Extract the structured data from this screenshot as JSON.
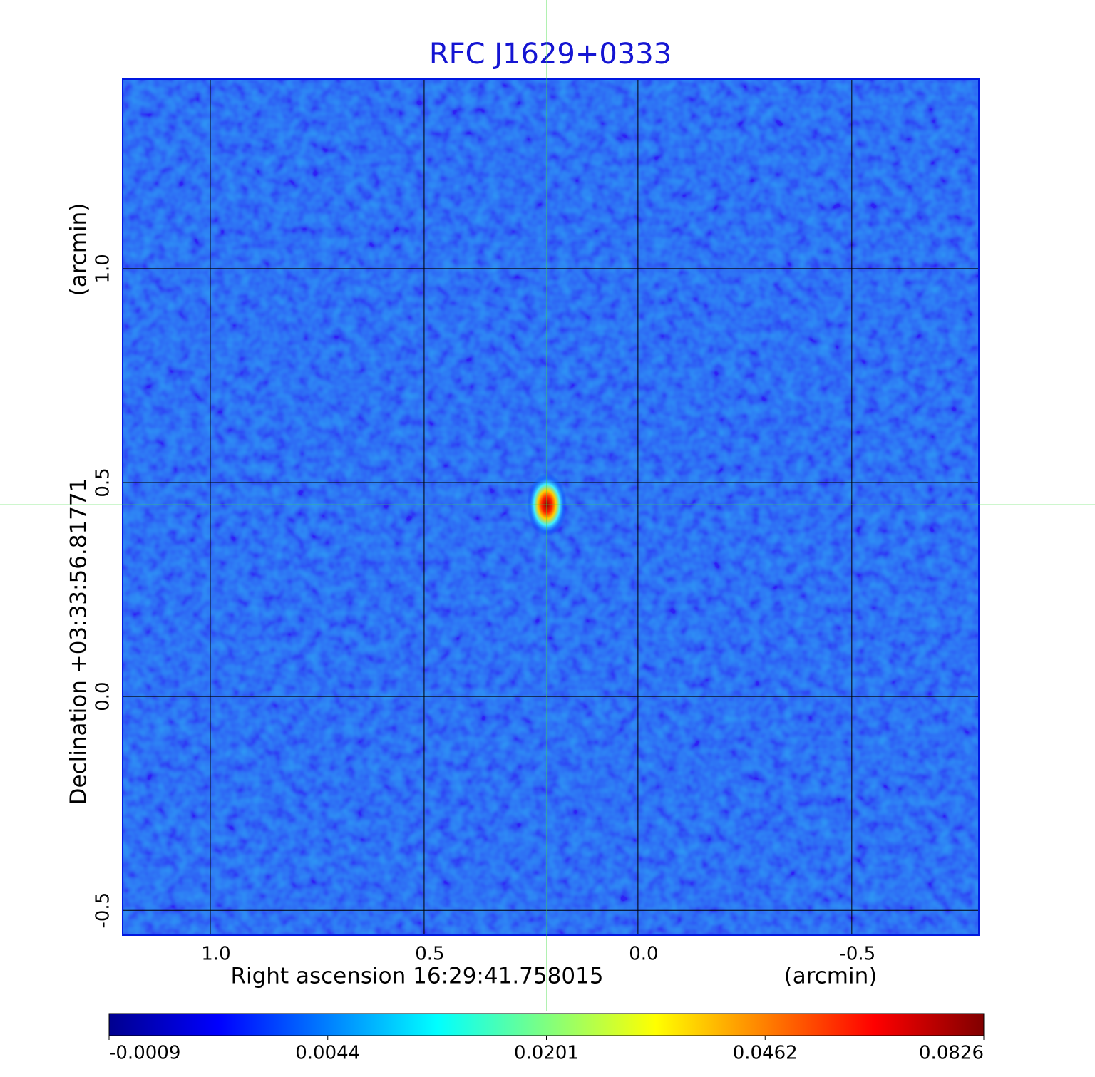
{
  "chart_data": {
    "type": "image",
    "title": "RFC J1629+0333",
    "x_label": "Right ascension  16:29:41.758015",
    "x_unit": "(arcmin)",
    "y_label": "Declination  +03:33:56.81771",
    "y_unit": "(arcmin)",
    "xlim": [
      1.205,
      -0.797
    ],
    "ylim": [
      -0.558,
      1.443
    ],
    "xticks": [
      {
        "value": 1,
        "label": "1.0"
      },
      0.5,
      {
        "value": 0,
        "label": "0.0"
      },
      -0.5
    ],
    "yticks": [
      {
        "value": 1,
        "label": "1.0"
      },
      0.5,
      {
        "value": 0,
        "label": "0.0"
      },
      -0.5
    ],
    "grid": true,
    "crosshair": {
      "x": 0.213,
      "y": 0.448,
      "color": "#3ddc3d"
    },
    "source": {
      "x": 0.213,
      "y": 0.448,
      "peak": 0.0826
    },
    "colormap": "jet",
    "colorbar_ticks": [
      -0.0009,
      0.0044,
      0.0201,
      0.0462,
      0.0826
    ],
    "title_color": "#1414d2"
  }
}
